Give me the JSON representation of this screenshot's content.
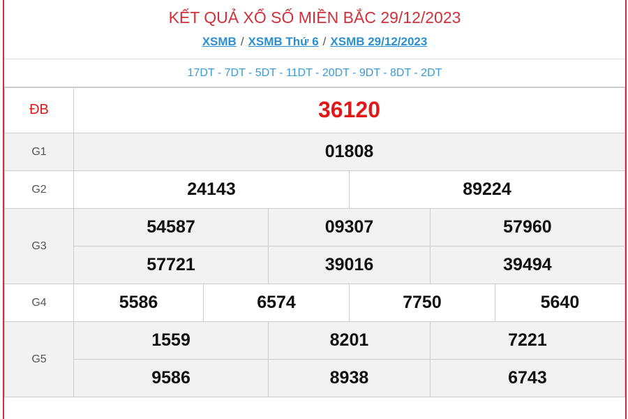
{
  "title": "KẾT QUẢ XỔ SỐ MIỀN BẮC 29/12/2023",
  "breadcrumb": [
    "XSMB",
    "XSMB Thứ 6",
    "XSMB 29/12/2023"
  ],
  "breadcrumb_separator": "/",
  "codes": "17DT - 7DT - 5DT - 11DT - 20DT - 9DT - 8DT - 2DT",
  "prizes": {
    "db": {
      "label": "ĐB",
      "numbers": [
        "36120"
      ]
    },
    "g1": {
      "label": "G1",
      "numbers": [
        "01808"
      ]
    },
    "g2": {
      "label": "G2",
      "numbers": [
        "24143",
        "89224"
      ]
    },
    "g3": {
      "label": "G3",
      "numbers": [
        "54587",
        "09307",
        "57960",
        "57721",
        "39016",
        "39494"
      ]
    },
    "g4": {
      "label": "G4",
      "numbers": [
        "5586",
        "6574",
        "7750",
        "5640"
      ]
    },
    "g5": {
      "label": "G5",
      "numbers": [
        "1559",
        "8201",
        "7221",
        "9586",
        "8938",
        "6743"
      ]
    }
  },
  "colors": {
    "title": "#d0303a",
    "link": "#2b8fd0",
    "special": "#e01818",
    "border": "#c9303a"
  }
}
